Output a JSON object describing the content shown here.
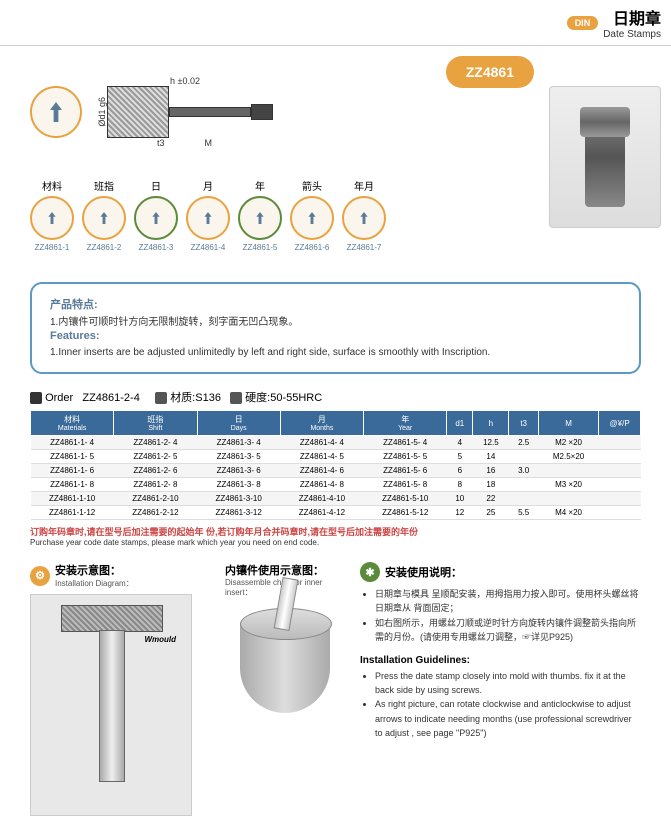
{
  "header": {
    "din": "DIN",
    "title_cn": "日期章",
    "title_en": "Date Stamps"
  },
  "product_code": "ZZ4861",
  "tech_dims": {
    "h": "h ±0.02",
    "t3": "t3",
    "M": "M",
    "d1": "Ød1 g6"
  },
  "variants": [
    {
      "cn": "材料",
      "code": "ZZ4861-1"
    },
    {
      "cn": "班指",
      "code": "ZZ4861-2"
    },
    {
      "cn": "日",
      "code": "ZZ4861-3"
    },
    {
      "cn": "月",
      "code": "ZZ4861-4"
    },
    {
      "cn": "年",
      "code": "ZZ4861-5"
    },
    {
      "cn": "箭头",
      "code": "ZZ4861-6"
    },
    {
      "cn": "年月",
      "code": "ZZ4861-7"
    }
  ],
  "features": {
    "title_cn": "产品特点:",
    "text_cn": "1.内镶件可顺时针方向无限制旋转，刻字面无凹凸现象。",
    "title_en": "Features:",
    "text_en": "1.Inner inserts are be adjusted unlimitedly by left and right side, surface is smoothly with Inscription."
  },
  "order": {
    "label": "Order",
    "example": "ZZ4861-2-4",
    "mat_label": "材质:S136",
    "hard_label": "硬度:50-55HRC"
  },
  "table": {
    "headers": [
      {
        "cn": "材料",
        "en": "Materials"
      },
      {
        "cn": "班指",
        "en": "Shift"
      },
      {
        "cn": "日",
        "en": "Days"
      },
      {
        "cn": "月",
        "en": "Months"
      },
      {
        "cn": "年",
        "en": "Year"
      },
      {
        "cn": "d1",
        "en": ""
      },
      {
        "cn": "h",
        "en": ""
      },
      {
        "cn": "t3",
        "en": ""
      },
      {
        "cn": "M",
        "en": ""
      },
      {
        "cn": "@¥/P",
        "en": ""
      }
    ],
    "rows": [
      [
        "ZZ4861-1- 4",
        "ZZ4861-2- 4",
        "ZZ4861-3- 4",
        "ZZ4861-4- 4",
        "ZZ4861-5- 4",
        "4",
        "12.5",
        "2.5",
        "M2 ×20",
        ""
      ],
      [
        "ZZ4861-1- 5",
        "ZZ4861-2- 5",
        "ZZ4861-3- 5",
        "ZZ4861-4- 5",
        "ZZ4861-5- 5",
        "5",
        "14",
        "",
        "M2.5×20",
        ""
      ],
      [
        "ZZ4861-1- 6",
        "ZZ4861-2- 6",
        "ZZ4861-3- 6",
        "ZZ4861-4- 6",
        "ZZ4861-5- 6",
        "6",
        "16",
        "3.0",
        "",
        ""
      ],
      [
        "ZZ4861-1- 8",
        "ZZ4861-2- 8",
        "ZZ4861-3- 8",
        "ZZ4861-4- 8",
        "ZZ4861-5- 8",
        "8",
        "18",
        "",
        "M3 ×20",
        ""
      ],
      [
        "ZZ4861-1-10",
        "ZZ4861-2-10",
        "ZZ4861-3-10",
        "ZZ4861-4-10",
        "ZZ4861-5-10",
        "10",
        "22",
        "",
        "",
        ""
      ],
      [
        "ZZ4861-1-12",
        "ZZ4861-2-12",
        "ZZ4861-3-12",
        "ZZ4861-4-12",
        "ZZ4861-5-12",
        "12",
        "25",
        "5.5",
        "M4 ×20",
        ""
      ]
    ]
  },
  "purchase_note": {
    "cn": "订购年码章时,请在型号后加注需要的起始年 份,若订购年月合并码章时,请在型号后加注需要的年份",
    "en": "Purchase year code date stamps, please mark which year you need on end code."
  },
  "install": {
    "title_cn": "安装示意图：",
    "title_en": "Installation Diagram：",
    "brand": "Wmould"
  },
  "chart": {
    "title_cn": "内镶件使用示意图：",
    "title_en": "Disassemble chart for inner insert："
  },
  "guide": {
    "title_cn": "安装使用说明：",
    "bullets_cn": [
      "日期章与模具 呈顺配安装，用拇指用力按入即可。使用杯头螺丝将日期章从 背面固定；",
      "如右图所示，用螺丝刀顺或逆时针方向旋转内镶件调整箭头指向所需的月份。(请使用专用螺丝刀调整，☞详见P925)"
    ],
    "title_en": "Installation Guidelines:",
    "bullets_en": [
      "Press the date stamp closely into mold with thumbs. fix it at the back side by using screws.",
      "As right picture, can rotate clockwise and anticlockwise to adjust arrows to indicate needing months (use professional screwdriver to adjust , see page \"P925\")"
    ]
  }
}
